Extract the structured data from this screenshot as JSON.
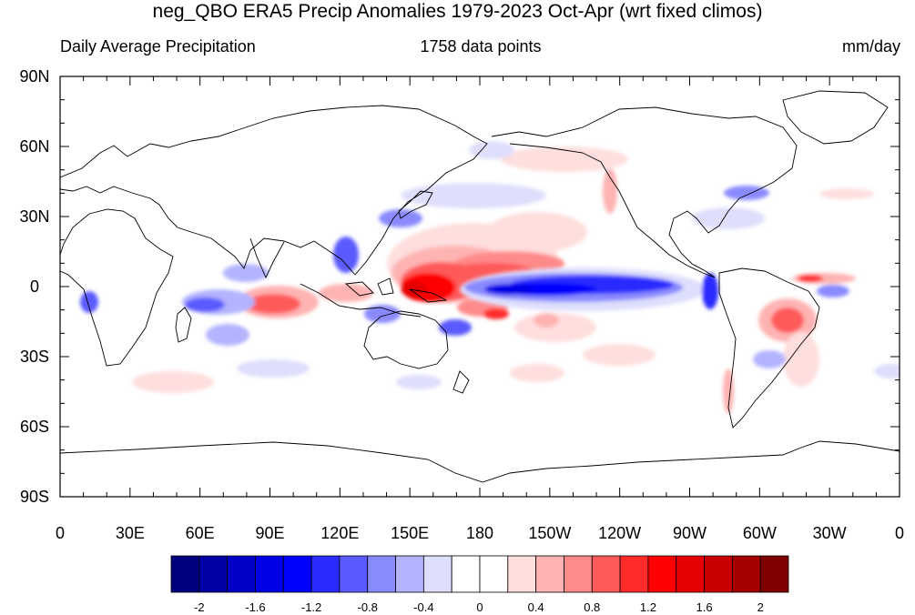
{
  "title": "neg_QBO ERA5 Precip Anomalies 1979-2023 Oct-Apr (wrt fixed climos)",
  "subtitle_left": "Daily Average Precipitation",
  "subtitle_center": "1758 data points",
  "subtitle_right": "mm/day",
  "map": {
    "projection": "cylindrical-equidistant",
    "lon_range": [
      0,
      360
    ],
    "lat_range": [
      -90,
      90
    ],
    "lat_labels": [
      "90N",
      "60N",
      "30N",
      "0",
      "30S",
      "60S",
      "90S"
    ],
    "lon_labels": [
      "0",
      "30E",
      "60E",
      "90E",
      "120E",
      "150E",
      "180",
      "150W",
      "120W",
      "90W",
      "60W",
      "30W",
      "0"
    ],
    "features": [
      {
        "name": "west-pacific-wet",
        "lon": 160,
        "lat": -1,
        "value": 2.0
      },
      {
        "name": "central-pacific-dry",
        "lon": 225,
        "lat": -1,
        "value": -1.4
      },
      {
        "name": "south-america-wet",
        "lon": 310,
        "lat": -14,
        "value": 1.4
      },
      {
        "name": "indian-ocean-wet",
        "lon": 92,
        "lat": -8,
        "value": 1.0
      },
      {
        "name": "spcz-wet",
        "lon": 190,
        "lat": -10,
        "value": 1.0
      },
      {
        "name": "south-indian-dry",
        "lon": 65,
        "lat": -8,
        "value": -0.8
      },
      {
        "name": "philippines-dry",
        "lon": 123,
        "lat": 12,
        "value": -0.8
      },
      {
        "name": "eastern-pacific-dry",
        "lon": 275,
        "lat": -1,
        "value": -1.2
      },
      {
        "name": "atlantic-itcz-wet",
        "lon": 330,
        "lat": 4,
        "value": 1.2
      }
    ]
  },
  "colorbar": {
    "colors": [
      "#00007f",
      "#0000a5",
      "#0000c8",
      "#0000e6",
      "#0000ff",
      "#2b2bff",
      "#5a5aff",
      "#8a8aff",
      "#b3b3ff",
      "#dedefd",
      "#ffffff",
      "#ffffff",
      "#ffdede",
      "#ffb3b3",
      "#ff8a8a",
      "#ff5a5a",
      "#ff2b2b",
      "#ff0000",
      "#e60000",
      "#c80000",
      "#a50000",
      "#7f0000"
    ],
    "labels": [
      "-2",
      "-1.6",
      "-1.2",
      "-0.8",
      "-0.4",
      "0",
      "0.4",
      "0.8",
      "1.2",
      "1.6",
      "2"
    ]
  }
}
